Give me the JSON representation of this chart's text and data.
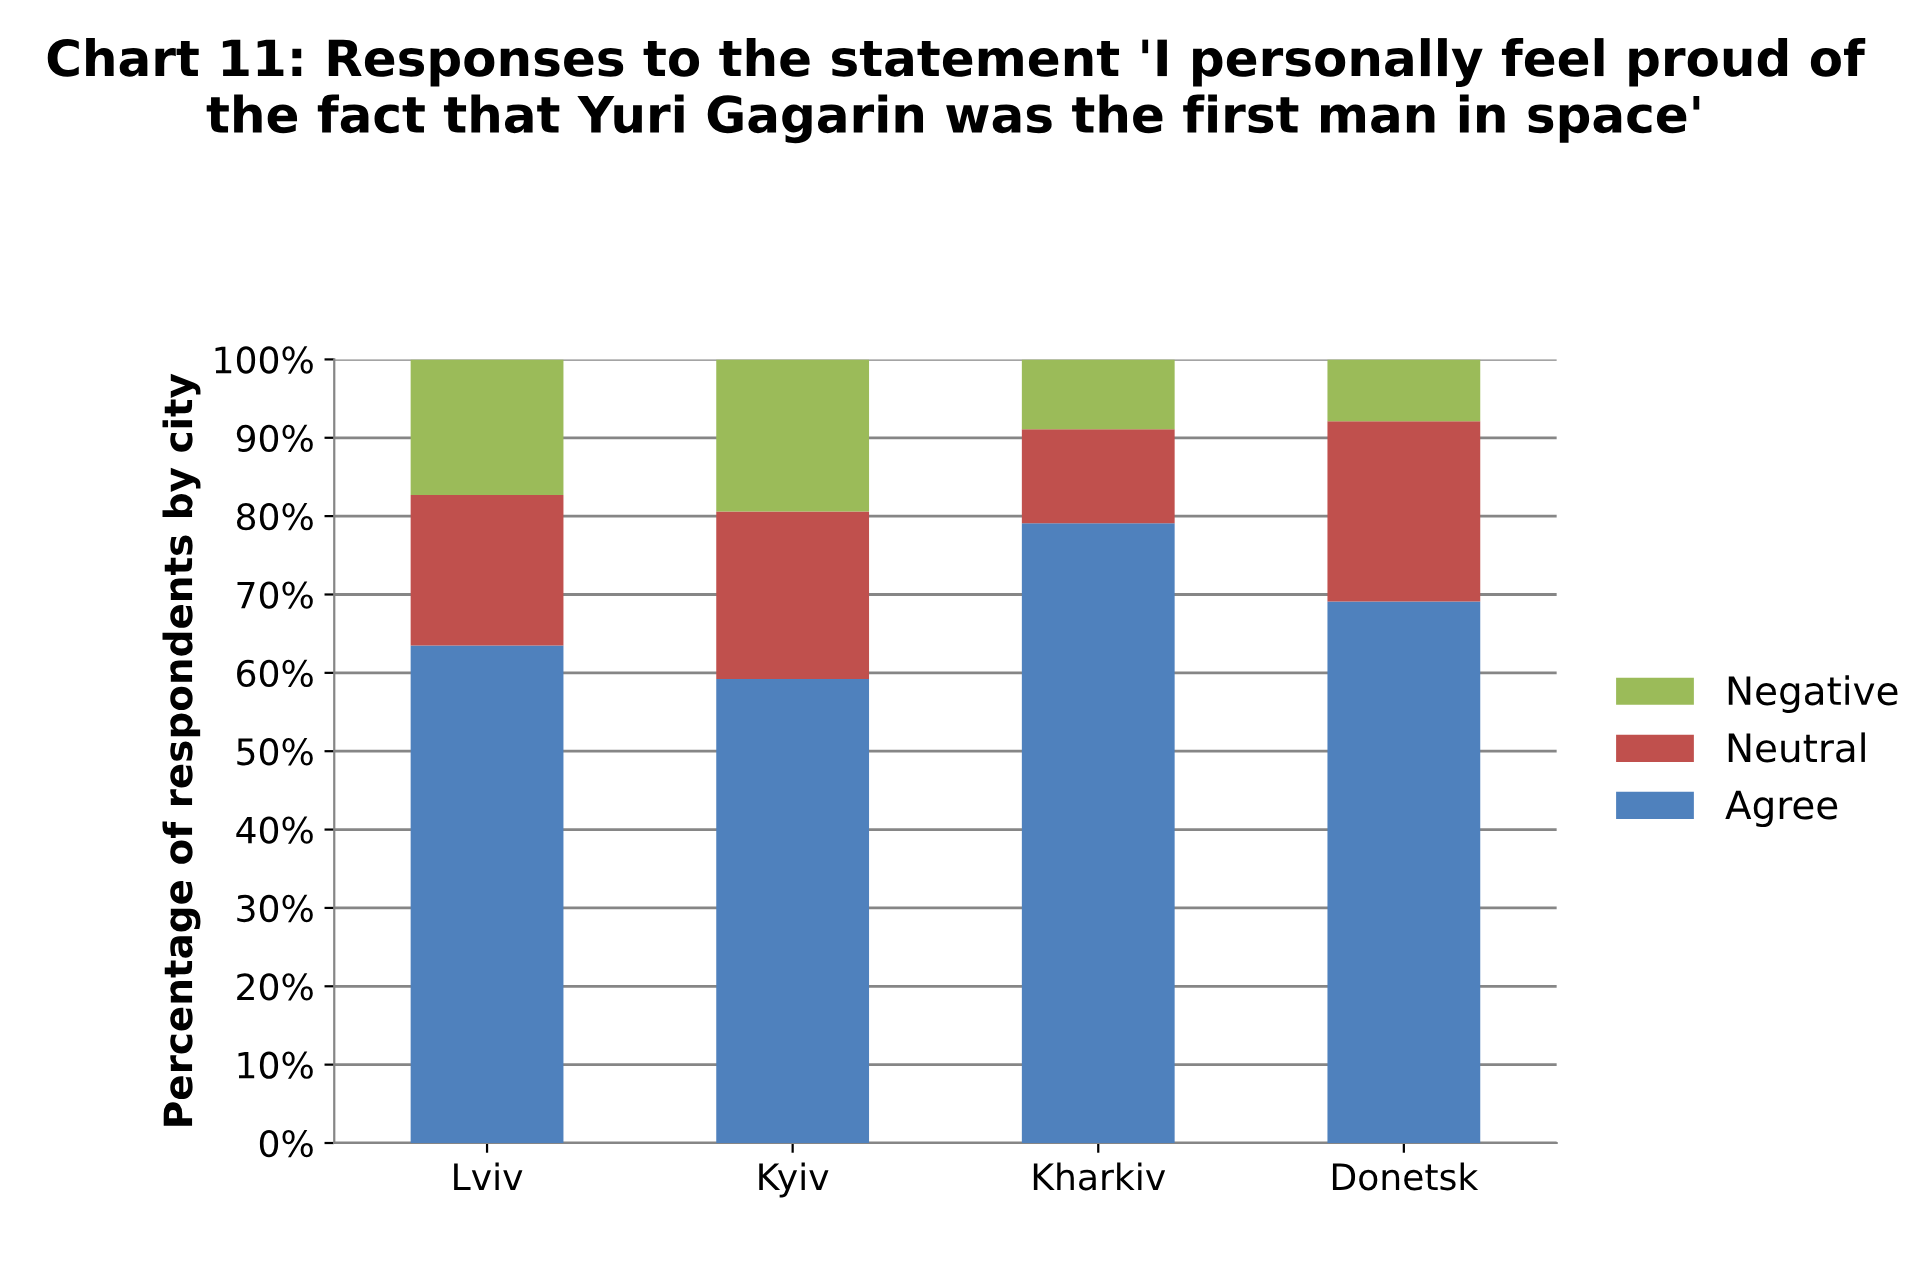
{
  "chart_data": {
    "type": "bar",
    "stacked": true,
    "title": "Chart 11: Responses to the statement 'I personally feel proud of the fact that Yuri Gagarin was the first man in space'",
    "ylabel": "Percentage of respondents by city",
    "categories": [
      "Lviv",
      "Kyiv",
      "Kharkiv",
      "Donetsk"
    ],
    "series": [
      {
        "name": "Agree",
        "color": "#4f81bd",
        "values": [
          63.5,
          59.2,
          79.1,
          69.1
        ]
      },
      {
        "name": "Neutral",
        "color": "#c0504d",
        "values": [
          19.2,
          21.4,
          12.0,
          23.0
        ]
      },
      {
        "name": "Negative",
        "color": "#9bbb59",
        "values": [
          17.3,
          19.4,
          8.9,
          7.9
        ]
      }
    ],
    "ylim": [
      0,
      100
    ],
    "yticks": [
      {
        "value": 0,
        "label": "0%"
      },
      {
        "value": 10,
        "label": "10%"
      },
      {
        "value": 20,
        "label": "20%"
      },
      {
        "value": 30,
        "label": "30%"
      },
      {
        "value": 40,
        "label": "40%"
      },
      {
        "value": 50,
        "label": "50%"
      },
      {
        "value": 60,
        "label": "60%"
      },
      {
        "value": 70,
        "label": "70%"
      },
      {
        "value": 80,
        "label": "80%"
      },
      {
        "value": 90,
        "label": "90%"
      },
      {
        "value": 100,
        "label": "100%"
      }
    ],
    "grid": "y",
    "legend": "right"
  }
}
